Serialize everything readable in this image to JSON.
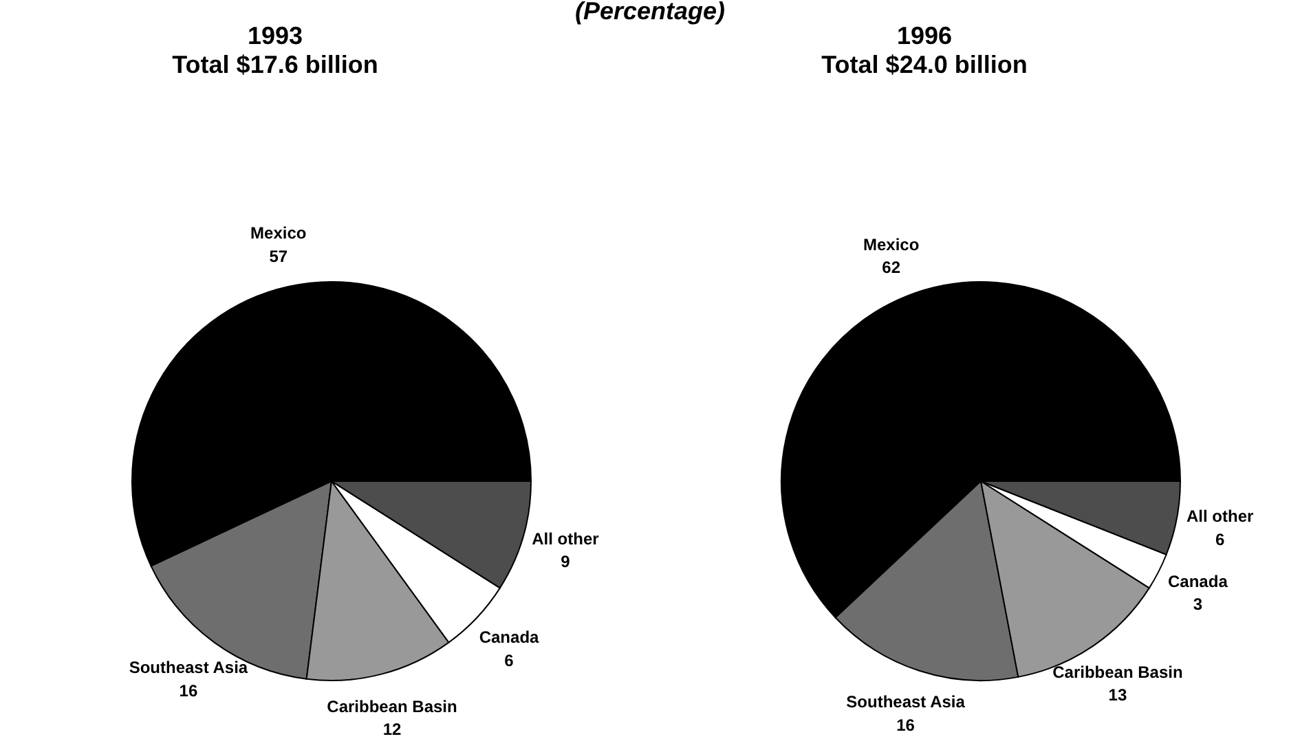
{
  "chart_data": [
    {
      "type": "pie",
      "title": "1993",
      "subtitle": "Total $17.6 billion",
      "annotations": [
        "(Percentage)"
      ],
      "categories": [
        "Mexico",
        "Southeast Asia",
        "Caribbean Basin",
        "Canada",
        "All other"
      ],
      "values": [
        57,
        16,
        12,
        6,
        9
      ],
      "colors": [
        "#000000",
        "#6e6e6e",
        "#999999",
        "#ffffff",
        "#4d4d4d"
      ],
      "data_labels": true,
      "legend": false
    },
    {
      "type": "pie",
      "title": "1996",
      "subtitle": "Total $24.0 billion",
      "categories": [
        "Mexico",
        "Southeast Asia",
        "Caribbean Basin",
        "Canada",
        "All other"
      ],
      "values": [
        62,
        16,
        13,
        3,
        6
      ],
      "colors": [
        "#000000",
        "#6e6e6e",
        "#999999",
        "#ffffff",
        "#4d4d4d"
      ],
      "data_labels": true,
      "legend": false
    }
  ]
}
